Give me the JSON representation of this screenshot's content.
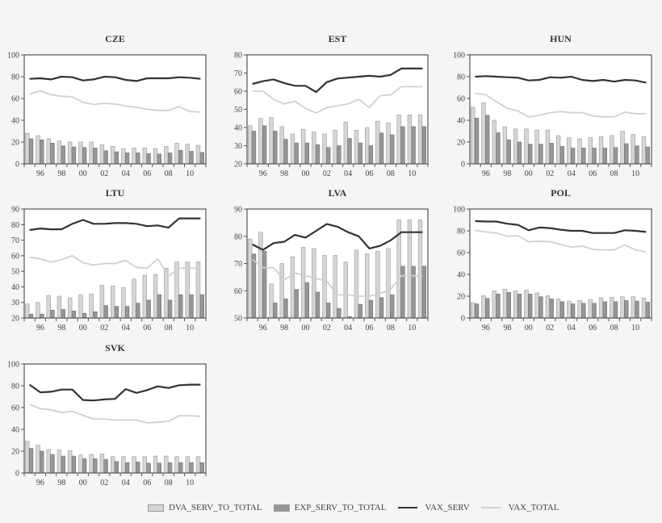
{
  "chart_data": [
    {
      "type": "bar+line",
      "title": "CZE",
      "x": [
        1995,
        1996,
        1997,
        1998,
        1999,
        2000,
        2001,
        2002,
        2003,
        2004,
        2005,
        2006,
        2007,
        2008,
        2009,
        2010,
        2011
      ],
      "xtick_labels": [
        "96",
        "98",
        "00",
        "02",
        "04",
        "06",
        "08",
        "10"
      ],
      "ylim": [
        0,
        100
      ],
      "yticks": [
        0,
        20,
        40,
        60,
        80,
        100
      ],
      "series": [
        {
          "name": "DVA_SERV_TO_TOTAL",
          "kind": "bar",
          "values": [
            28,
            26,
            23,
            21,
            20,
            20,
            20,
            17.5,
            16,
            14,
            14.5,
            14.5,
            14,
            16,
            19,
            18,
            17
          ]
        },
        {
          "name": "EXP_SERV_TO_TOTAL",
          "kind": "bar",
          "values": [
            23,
            22,
            19,
            16.5,
            15.5,
            15,
            14.5,
            12,
            11,
            10,
            10,
            9.5,
            9,
            10,
            12.5,
            11.5,
            10.5
          ]
        },
        {
          "name": "VAX_SERV",
          "kind": "line",
          "values": [
            78,
            78.5,
            77.5,
            80,
            79.5,
            76.5,
            77.5,
            80,
            79.5,
            77,
            76,
            78.5,
            78.5,
            78.5,
            79.5,
            79,
            78
          ]
        },
        {
          "name": "VAX_TOTAL",
          "kind": "line",
          "values": [
            64,
            67,
            63.5,
            62,
            61.5,
            56.5,
            54.5,
            55.5,
            55,
            53,
            52,
            50,
            49,
            49,
            52.5,
            48,
            47.5
          ]
        }
      ]
    },
    {
      "type": "bar+line",
      "title": "EST",
      "x": [
        1995,
        1996,
        1997,
        1998,
        1999,
        2000,
        2001,
        2002,
        2003,
        2004,
        2005,
        2006,
        2007,
        2008,
        2009,
        2010,
        2011
      ],
      "xtick_labels": [
        "96",
        "98",
        "00",
        "02",
        "04",
        "06",
        "08",
        "10"
      ],
      "ylim": [
        20,
        80
      ],
      "yticks": [
        20,
        30,
        40,
        50,
        60,
        70,
        80
      ],
      "series": [
        {
          "name": "DVA_SERV_TO_TOTAL",
          "kind": "bar",
          "values": [
            41,
            45,
            45.5,
            40.5,
            36.5,
            39,
            37.5,
            36.5,
            38.5,
            43,
            38.5,
            40,
            43.5,
            42.5,
            47,
            47,
            47
          ]
        },
        {
          "name": "EXP_SERV_TO_TOTAL",
          "kind": "bar",
          "values": [
            38,
            41,
            38,
            33.5,
            31.5,
            31.5,
            30.5,
            29,
            30,
            34,
            31.5,
            30,
            37,
            36,
            40.5,
            40.5,
            40.5
          ]
        },
        {
          "name": "VAX_SERV",
          "kind": "line",
          "values": [
            64,
            65.5,
            66.5,
            64.5,
            63,
            63,
            59.5,
            65,
            67,
            67.5,
            68,
            68.5,
            68,
            69,
            72.5,
            72.5,
            72.5
          ]
        },
        {
          "name": "VAX_TOTAL",
          "kind": "line",
          "values": [
            60,
            60,
            55.5,
            53,
            54.5,
            50.5,
            48,
            51,
            52,
            53,
            55.5,
            51,
            57.5,
            58,
            62.5,
            62.5,
            62.5
          ]
        }
      ]
    },
    {
      "type": "bar+line",
      "title": "HUN",
      "x": [
        1995,
        1996,
        1997,
        1998,
        1999,
        2000,
        2001,
        2002,
        2003,
        2004,
        2005,
        2006,
        2007,
        2008,
        2009,
        2010,
        2011
      ],
      "xtick_labels": [
        "96",
        "98",
        "00",
        "02",
        "04",
        "06",
        "08",
        "10"
      ],
      "ylim": [
        0,
        100
      ],
      "yticks": [
        0,
        20,
        40,
        60,
        80,
        100
      ],
      "series": [
        {
          "name": "DVA_SERV_TO_TOTAL",
          "kind": "bar",
          "values": [
            52,
            56,
            40,
            34,
            32,
            32,
            31,
            31,
            26,
            24,
            23,
            24,
            25,
            26,
            30,
            27,
            25
          ]
        },
        {
          "name": "EXP_SERV_TO_TOTAL",
          "kind": "bar",
          "values": [
            42,
            44.5,
            28.5,
            22,
            20,
            18,
            18,
            19,
            16,
            14.5,
            14.5,
            14.5,
            14.5,
            15,
            18.5,
            16.5,
            15.5
          ]
        },
        {
          "name": "VAX_SERV",
          "kind": "line",
          "values": [
            80,
            80.5,
            80,
            79.5,
            79,
            76.5,
            77,
            79.5,
            79,
            80,
            77,
            76,
            77,
            75.5,
            77,
            76.5,
            74.5
          ]
        },
        {
          "name": "VAX_TOTAL",
          "kind": "line",
          "values": [
            64.5,
            63.5,
            57,
            51,
            48.5,
            43,
            44.5,
            47,
            48,
            47,
            47,
            44,
            43,
            43,
            47.5,
            46,
            46
          ]
        }
      ]
    },
    {
      "type": "bar+line",
      "title": "LTU",
      "x": [
        1995,
        1996,
        1997,
        1998,
        1999,
        2000,
        2001,
        2002,
        2003,
        2004,
        2005,
        2006,
        2007,
        2008,
        2009,
        2010,
        2011
      ],
      "xtick_labels": [
        "96",
        "98",
        "00",
        "02",
        "04",
        "06",
        "08",
        "10"
      ],
      "ylim": [
        20,
        90
      ],
      "yticks": [
        20,
        30,
        40,
        50,
        60,
        70,
        80,
        90
      ],
      "series": [
        {
          "name": "DVA_SERV_TO_TOTAL",
          "kind": "bar",
          "values": [
            29,
            30,
            34.5,
            34,
            33,
            35,
            35.5,
            41,
            40.5,
            39.5,
            45,
            47.5,
            48,
            52,
            56,
            56,
            56
          ]
        },
        {
          "name": "EXP_SERV_TO_TOTAL",
          "kind": "bar",
          "values": [
            22.5,
            22.5,
            25,
            25.5,
            24.5,
            23,
            24,
            28,
            27.5,
            27.5,
            29.5,
            31.5,
            35,
            31.5,
            35,
            35,
            35
          ]
        },
        {
          "name": "VAX_SERV",
          "kind": "line",
          "values": [
            76.5,
            77.5,
            77,
            77,
            80.5,
            83,
            80.5,
            80.5,
            81,
            81,
            80.5,
            79,
            79.5,
            78,
            84,
            84,
            84
          ]
        },
        {
          "name": "VAX_TOTAL",
          "kind": "line",
          "values": [
            59,
            58,
            56,
            57.5,
            60,
            55.5,
            54,
            55,
            55,
            57,
            52.5,
            52,
            58,
            47,
            52,
            52,
            52
          ]
        }
      ]
    },
    {
      "type": "bar+line",
      "title": "LVA",
      "x": [
        1995,
        1996,
        1997,
        1998,
        1999,
        2000,
        2001,
        2002,
        2003,
        2004,
        2005,
        2006,
        2007,
        2008,
        2009,
        2010,
        2011
      ],
      "xtick_labels": [
        "96",
        "98",
        "00",
        "02",
        "04",
        "06",
        "08",
        "10"
      ],
      "ylim": [
        50,
        90
      ],
      "yticks": [
        50,
        60,
        70,
        80,
        90
      ],
      "series": [
        {
          "name": "DVA_SERV_TO_TOTAL",
          "kind": "bar",
          "values": [
            79,
            81.5,
            62.5,
            70,
            72.5,
            76,
            75.5,
            73,
            73,
            70.5,
            75,
            73.5,
            74.5,
            75.5,
            86,
            86,
            86
          ]
        },
        {
          "name": "EXP_SERV_TO_TOTAL",
          "kind": "bar",
          "values": [
            73.5,
            74.5,
            55.5,
            57,
            60.5,
            63,
            59.5,
            55.5,
            53.5,
            50.5,
            55,
            56.5,
            57.5,
            58.5,
            69,
            69,
            69
          ]
        },
        {
          "name": "VAX_SERV",
          "kind": "line",
          "values": [
            77,
            75,
            77.5,
            78,
            80.5,
            79.5,
            82,
            84.5,
            83.5,
            81.5,
            80,
            75.5,
            76.5,
            78.5,
            81.5,
            81.5,
            81.5
          ]
        },
        {
          "name": "VAX_TOTAL",
          "kind": "line",
          "values": [
            71.5,
            68.5,
            68.5,
            64,
            66.5,
            65.5,
            64.5,
            63.5,
            58.5,
            58.5,
            58,
            58,
            59,
            60.5,
            65.5,
            65.5,
            65.5
          ]
        }
      ]
    },
    {
      "type": "bar+line",
      "title": "POL",
      "x": [
        1995,
        1996,
        1997,
        1998,
        1999,
        2000,
        2001,
        2002,
        2003,
        2004,
        2005,
        2006,
        2007,
        2008,
        2009,
        2010,
        2011
      ],
      "xtick_labels": [
        "96",
        "98",
        "00",
        "02",
        "04",
        "06",
        "08",
        "10"
      ],
      "ylim": [
        0,
        100
      ],
      "yticks": [
        0,
        20,
        40,
        60,
        80,
        100
      ],
      "series": [
        {
          "name": "DVA_SERV_TO_TOTAL",
          "kind": "bar",
          "values": [
            14,
            20.5,
            25,
            26.5,
            25,
            25.5,
            23,
            20.5,
            17.5,
            15.5,
            16,
            17,
            18.5,
            19,
            19.5,
            19.5,
            18.5
          ]
        },
        {
          "name": "EXP_SERV_TO_TOTAL",
          "kind": "bar",
          "values": [
            13,
            18,
            22,
            23.5,
            22,
            22,
            19.5,
            17.5,
            15,
            13,
            13.5,
            13.5,
            15,
            15,
            16,
            15.5,
            14.5
          ]
        },
        {
          "name": "VAX_SERV",
          "kind": "line",
          "values": [
            89,
            88.5,
            88.5,
            86.5,
            85.5,
            80.5,
            83,
            82.5,
            81,
            80,
            80,
            78,
            78,
            78,
            80.5,
            80,
            79
          ]
        },
        {
          "name": "VAX_TOTAL",
          "kind": "line",
          "values": [
            80.5,
            79,
            78,
            75,
            75.5,
            70,
            70.5,
            70,
            67.5,
            65,
            66,
            63,
            62.5,
            62.5,
            67,
            62.5,
            60.5
          ]
        }
      ]
    },
    {
      "type": "bar+line",
      "title": "SVK",
      "x": [
        1995,
        1996,
        1997,
        1998,
        1999,
        2000,
        2001,
        2002,
        2003,
        2004,
        2005,
        2006,
        2007,
        2008,
        2009,
        2010,
        2011
      ],
      "xtick_labels": [
        "96",
        "98",
        "00",
        "02",
        "04",
        "06",
        "08",
        "10"
      ],
      "ylim": [
        0,
        100
      ],
      "yticks": [
        0,
        20,
        40,
        60,
        80,
        100
      ],
      "series": [
        {
          "name": "DVA_SERV_TO_TOTAL",
          "kind": "bar",
          "values": [
            29,
            25.5,
            21.5,
            21,
            20.5,
            16.5,
            17,
            17.5,
            15,
            15,
            15,
            15,
            15.5,
            15.5,
            15,
            15,
            15
          ]
        },
        {
          "name": "EXP_SERV_TO_TOTAL",
          "kind": "bar",
          "values": [
            22.5,
            20,
            17,
            15.5,
            15.5,
            13,
            13,
            12.5,
            10.5,
            9.5,
            10,
            9,
            9,
            9.5,
            9.5,
            9.5,
            9.5
          ]
        },
        {
          "name": "VAX_SERV",
          "kind": "line",
          "values": [
            81,
            74,
            74.5,
            76.5,
            76.5,
            67,
            66.5,
            67.5,
            68,
            77,
            73.5,
            76,
            79.5,
            78,
            80.5,
            81,
            81
          ]
        },
        {
          "name": "VAX_TOTAL",
          "kind": "line",
          "values": [
            63,
            59,
            58,
            55.5,
            56.5,
            53,
            49.5,
            49.5,
            48.5,
            48.5,
            48.5,
            46,
            46.5,
            47.5,
            52.5,
            52.5,
            52
          ]
        }
      ]
    }
  ],
  "legend": {
    "items": [
      {
        "label": "DVA_SERV_TO_TOTAL",
        "kind": "bar",
        "color": "#d6d6d6"
      },
      {
        "label": "EXP_SERV_TO_TOTAL",
        "kind": "bar",
        "color": "#969696"
      },
      {
        "label": "VAX_SERV",
        "kind": "line",
        "color": "#333333"
      },
      {
        "label": "VAX_TOTAL",
        "kind": "line",
        "color": "#d0d0d0"
      }
    ]
  },
  "colors": {
    "dva_bar": "#d6d6d6",
    "exp_bar": "#969696",
    "vax_serv": "#333333",
    "vax_total": "#d0d0d0",
    "frame": "#555555",
    "plot_bg": "#ffffff"
  }
}
